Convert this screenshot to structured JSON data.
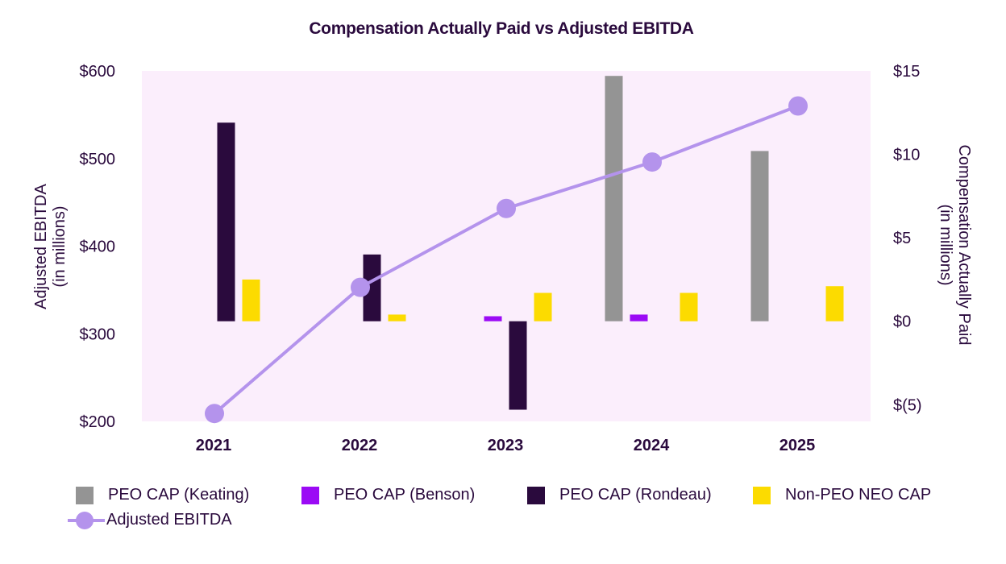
{
  "chart_data": {
    "type": "bar",
    "title": "Compensation Actually Paid vs Adjusted EBITDA",
    "categories": [
      "2021",
      "2022",
      "2023",
      "2024",
      "2025"
    ],
    "left_axis": {
      "label_line1": "Adjusted EBITDA",
      "label_line2": "(in millions)",
      "range": [
        200,
        600
      ],
      "ticks": [
        200,
        300,
        400,
        500,
        600
      ],
      "tick_labels": [
        "$200",
        "$300",
        "$400",
        "$500",
        "$600"
      ]
    },
    "right_axis": {
      "label_line1": "Compensation Actually Paid",
      "label_line2": "(in millions)",
      "range": [
        -6,
        15
      ],
      "ticks": [
        -5,
        0,
        5,
        10,
        15
      ],
      "tick_labels": [
        "$(5)",
        "$0",
        "$5",
        "$10",
        "$15"
      ]
    },
    "bar_series": [
      {
        "name": "PEO CAP (Keating)",
        "color": "#949494",
        "values": [
          null,
          null,
          null,
          14.7,
          10.2
        ]
      },
      {
        "name": "PEO CAP (Benson)",
        "color": "#9b0af5",
        "values": [
          null,
          null,
          0.3,
          0.4,
          null
        ]
      },
      {
        "name": "PEO CAP (Rondeau)",
        "color": "#2a0a3d",
        "values": [
          11.9,
          4.0,
          -5.3,
          null,
          null
        ]
      },
      {
        "name": "Non-PEO NEO CAP",
        "color": "#fcdb00",
        "values": [
          2.5,
          0.4,
          1.7,
          1.7,
          2.1
        ]
      }
    ],
    "line_series": {
      "name": "Adjusted EBITDA",
      "color": "#b493ec",
      "values": [
        209,
        353,
        443,
        496,
        560
      ]
    },
    "plot_background": "#fbeefc",
    "grid": false,
    "legend_position": "bottom"
  }
}
